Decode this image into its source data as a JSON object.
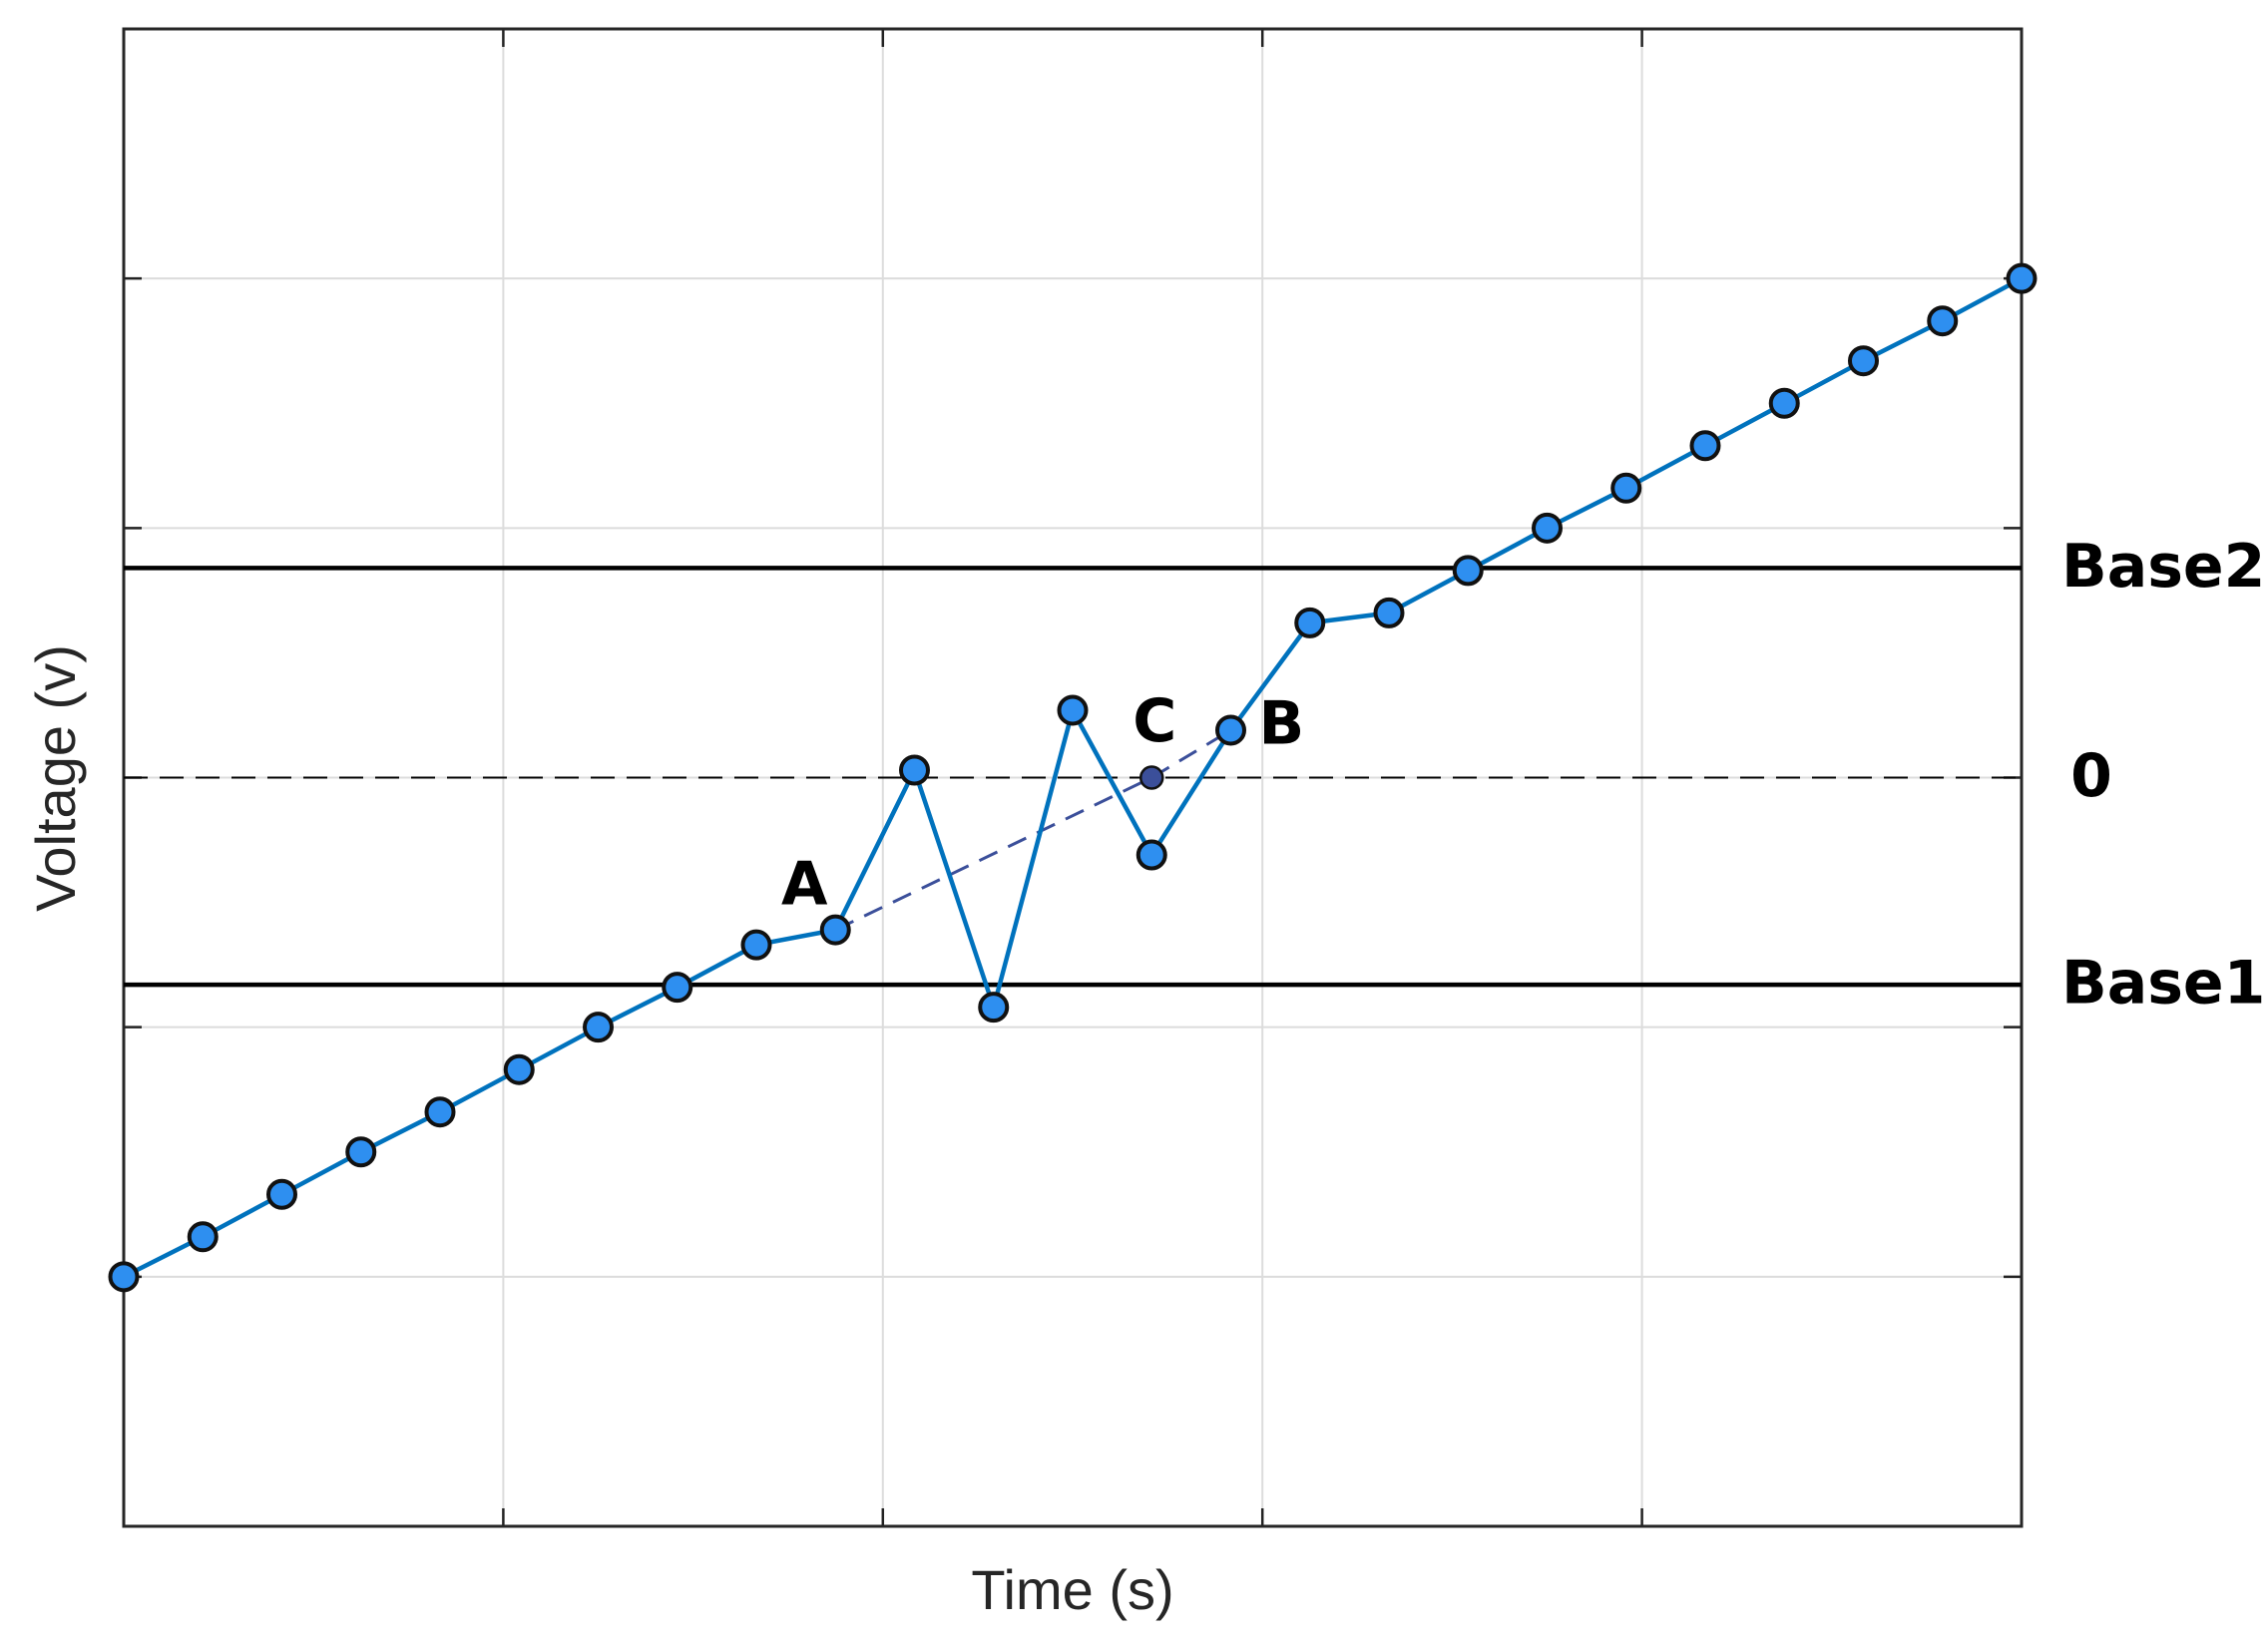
{
  "chart_data": {
    "type": "line",
    "xlabel": "Time (s)",
    "ylabel": "Voltage (v)",
    "x": [
      0,
      1,
      2,
      3,
      4,
      5,
      6,
      7,
      8,
      9,
      10,
      11,
      12,
      13,
      14,
      15,
      16,
      17,
      18,
      19,
      20,
      21,
      22,
      23,
      24
    ],
    "values": [
      -2.0,
      -1.84,
      -1.67,
      -1.5,
      -1.34,
      -1.17,
      -1.0,
      -0.84,
      -0.67,
      -0.61,
      0.03,
      -0.92,
      0.27,
      -0.31,
      0.19,
      0.62,
      0.66,
      0.83,
      1.0,
      1.16,
      1.33,
      1.5,
      1.67,
      1.83,
      2.0
    ],
    "point_labels": [
      null,
      null,
      null,
      null,
      null,
      null,
      null,
      null,
      null,
      "A",
      null,
      null,
      null,
      null,
      "B",
      null,
      null,
      null,
      null,
      null,
      null,
      null,
      null,
      null,
      null
    ],
    "color": "#0072bd",
    "marker_color": "#2e8ff0",
    "interpolation": {
      "x": [
        9,
        13,
        14
      ],
      "values": [
        -0.61,
        0.0,
        0.19
      ],
      "point_labels": [
        null,
        "C",
        null
      ],
      "color": "#3b4f9a"
    },
    "hlines": [
      {
        "value": 0.84,
        "label": "Base2",
        "style": "solid"
      },
      {
        "value": 0,
        "label": "0",
        "style": "dashed"
      },
      {
        "value": -0.83,
        "label": "Base1",
        "style": "solid"
      }
    ],
    "xlim": [
      0,
      24
    ],
    "xticks": [
      4.8,
      9.6,
      14.4,
      19.2
    ],
    "ylim": [
      -3,
      3
    ],
    "yticks": [
      -2,
      -1,
      0,
      1,
      2
    ],
    "grid": true
  }
}
